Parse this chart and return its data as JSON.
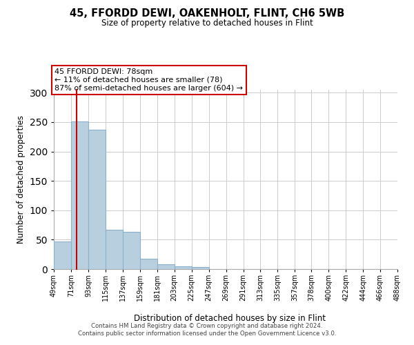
{
  "title": "45, FFORDD DEWI, OAKENHOLT, FLINT, CH6 5WB",
  "subtitle": "Size of property relative to detached houses in Flint",
  "xlabel": "Distribution of detached houses by size in Flint",
  "ylabel": "Number of detached properties",
  "bar_edges": [
    49,
    71,
    93,
    115,
    137,
    159,
    181,
    203,
    225,
    247,
    269,
    291,
    313,
    335,
    357,
    378,
    400,
    422,
    444,
    466,
    488
  ],
  "bar_heights": [
    47,
    251,
    237,
    67,
    63,
    18,
    8,
    5,
    3,
    0,
    0,
    0,
    0,
    0,
    0,
    0,
    0,
    0,
    0,
    0
  ],
  "bar_color": "#b8cfe0",
  "bar_edge_color": "#8ab0cc",
  "property_line_x": 78,
  "property_line_color": "#cc0000",
  "annotation_line1": "45 FFORDD DEWI: 78sqm",
  "annotation_line2": "← 11% of detached houses are smaller (78)",
  "annotation_line3": "87% of semi-detached houses are larger (604) →",
  "annotation_box_color": "#ffffff",
  "annotation_box_edge_color": "#cc0000",
  "ylim": [
    0,
    305
  ],
  "yticks": [
    0,
    50,
    100,
    150,
    200,
    250,
    300
  ],
  "tick_labels": [
    "49sqm",
    "71sqm",
    "93sqm",
    "115sqm",
    "137sqm",
    "159sqm",
    "181sqm",
    "203sqm",
    "225sqm",
    "247sqm",
    "269sqm",
    "291sqm",
    "313sqm",
    "335sqm",
    "357sqm",
    "378sqm",
    "400sqm",
    "422sqm",
    "444sqm",
    "466sqm",
    "488sqm"
  ],
  "footer_line1": "Contains HM Land Registry data © Crown copyright and database right 2024.",
  "footer_line2": "Contains public sector information licensed under the Open Government Licence v3.0.",
  "bg_color": "#ffffff",
  "grid_color": "#cccccc"
}
